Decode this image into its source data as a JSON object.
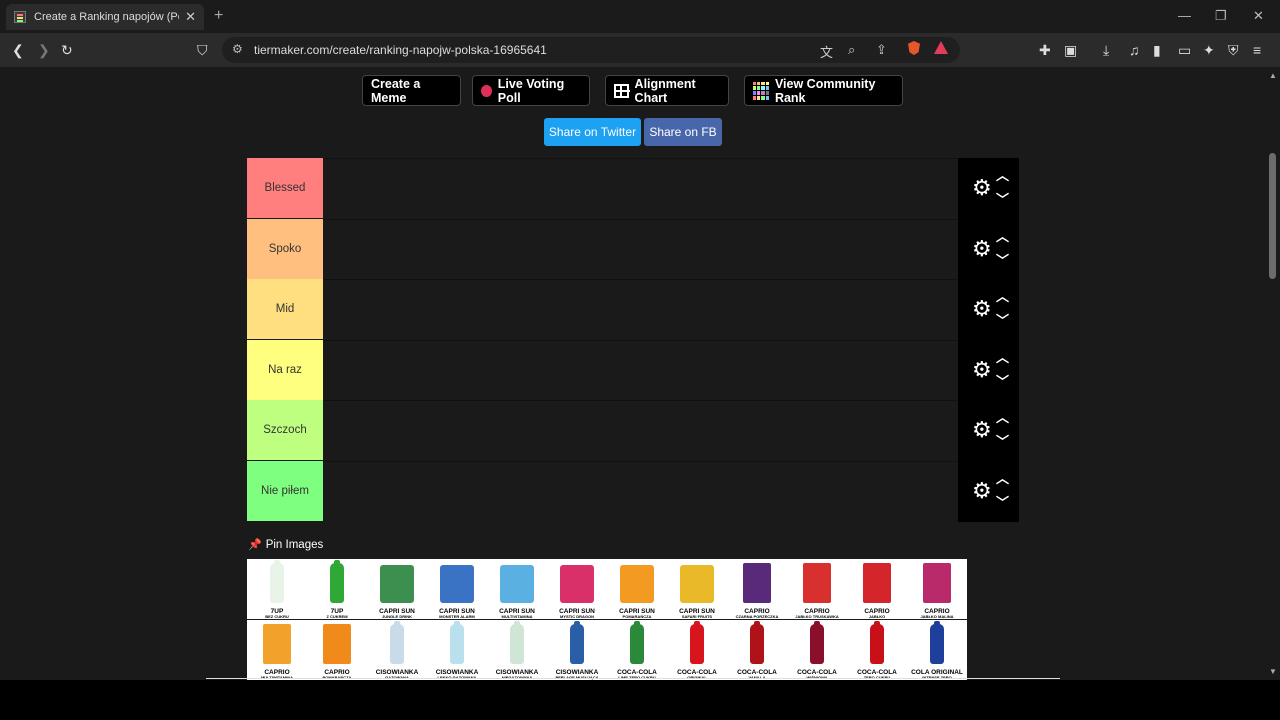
{
  "browser": {
    "tab_title": "Create a Ranking napojów (Polsk",
    "tab_close": "✕",
    "new_tab": "+",
    "url": "tiermaker.com/create/ranking-napojw-polska-16965641"
  },
  "actions": {
    "create_meme": "Create a Meme",
    "live_voting": "Live Voting Poll",
    "alignment_chart": "Alignment Chart",
    "community_rank": "View Community Rank",
    "share_twitter": "Share on Twitter",
    "share_fb": "Share on FB"
  },
  "colors": {
    "twitter": "#1da1f2",
    "facebook": "#4867aa"
  },
  "tiers": [
    {
      "label": "Blessed",
      "color": "#ff7f7f"
    },
    {
      "label": "Spoko",
      "color": "#ffbf7f"
    },
    {
      "label": "Mid",
      "color": "#ffdf7f"
    },
    {
      "label": "Na raz",
      "color": "#ffff7f"
    },
    {
      "label": "Szczoch",
      "color": "#bfff7f"
    },
    {
      "label": "Nie piłem",
      "color": "#7fff7f"
    }
  ],
  "pin_images_label": "Pin Images",
  "items": [
    {
      "name": "7UP",
      "sub": "BEZ CUKRU",
      "kind": "bottle",
      "color": "#e8f4e8"
    },
    {
      "name": "7UP",
      "sub": "Z CUKREM",
      "kind": "bottle",
      "color": "#2fa836"
    },
    {
      "name": "CAPRI SUN",
      "sub": "JUNGLE DRINK",
      "kind": "pouch",
      "color": "#3d8f4f"
    },
    {
      "name": "CAPRI SUN",
      "sub": "MONSTER ALARM",
      "kind": "pouch",
      "color": "#3a72c4"
    },
    {
      "name": "CAPRI SUN",
      "sub": "MULTIVITAMINA",
      "kind": "pouch",
      "color": "#5ab0e0"
    },
    {
      "name": "CAPRI SUN",
      "sub": "MYSTIC DRAGON",
      "kind": "pouch",
      "color": "#d9306a"
    },
    {
      "name": "CAPRI SUN",
      "sub": "POMARAŃCZA",
      "kind": "pouch",
      "color": "#f39a23"
    },
    {
      "name": "CAPRI SUN",
      "sub": "SAFARI FRUITS",
      "kind": "pouch",
      "color": "#e9b92a"
    },
    {
      "name": "CAPRIO",
      "sub": "CZARNA PORZECZKA",
      "kind": "carton",
      "color": "#5a2a7a"
    },
    {
      "name": "CAPRIO",
      "sub": "JABŁKO TRUSKAWKA",
      "kind": "carton",
      "color": "#d8302e"
    },
    {
      "name": "CAPRIO",
      "sub": "JABŁKO",
      "kind": "carton",
      "color": "#d4252b"
    },
    {
      "name": "CAPRIO",
      "sub": "JABŁKO MALINA",
      "kind": "carton",
      "color": "#b82a6a"
    },
    {
      "name": "CAPRIO",
      "sub": "MULTIWITAMINA",
      "kind": "carton",
      "color": "#f2a22a"
    },
    {
      "name": "CAPRIO",
      "sub": "POMARAŃCZA",
      "kind": "carton",
      "color": "#f08a1a"
    },
    {
      "name": "CISOWIANKA",
      "sub": "GAZOWANA",
      "kind": "bottle",
      "color": "#c9dbe8"
    },
    {
      "name": "CISOWIANKA",
      "sub": "LEKKO GAZOWANA",
      "kind": "bottle",
      "color": "#b9e0ec"
    },
    {
      "name": "CISOWIANKA",
      "sub": "NIEGAZOWANA",
      "kind": "bottle",
      "color": "#cfe6d6"
    },
    {
      "name": "CISOWIANKA",
      "sub": "PERLAGE MUSUJĄCA",
      "kind": "bottle",
      "color": "#2a5fa8"
    },
    {
      "name": "COCA-COLA",
      "sub": "LIME ZERO CUKRU",
      "kind": "bottle",
      "color": "#2a8a3a"
    },
    {
      "name": "COCA-COLA",
      "sub": "ORIGINAL",
      "kind": "bottle",
      "color": "#d8141c"
    },
    {
      "name": "COCA-COLA",
      "sub": "VANILLA",
      "kind": "bottle",
      "color": "#b0121a"
    },
    {
      "name": "COCA-COLA",
      "sub": "WIŚNIOWA",
      "kind": "bottle",
      "color": "#8a0f2a"
    },
    {
      "name": "COCA-COLA",
      "sub": "ZERO CUKRU",
      "kind": "bottle",
      "color": "#c81018"
    },
    {
      "name": "COLA ORIGINAL",
      "sub": "INTENSE ZERO",
      "kind": "bottle",
      "color": "#1e3f9a"
    }
  ]
}
